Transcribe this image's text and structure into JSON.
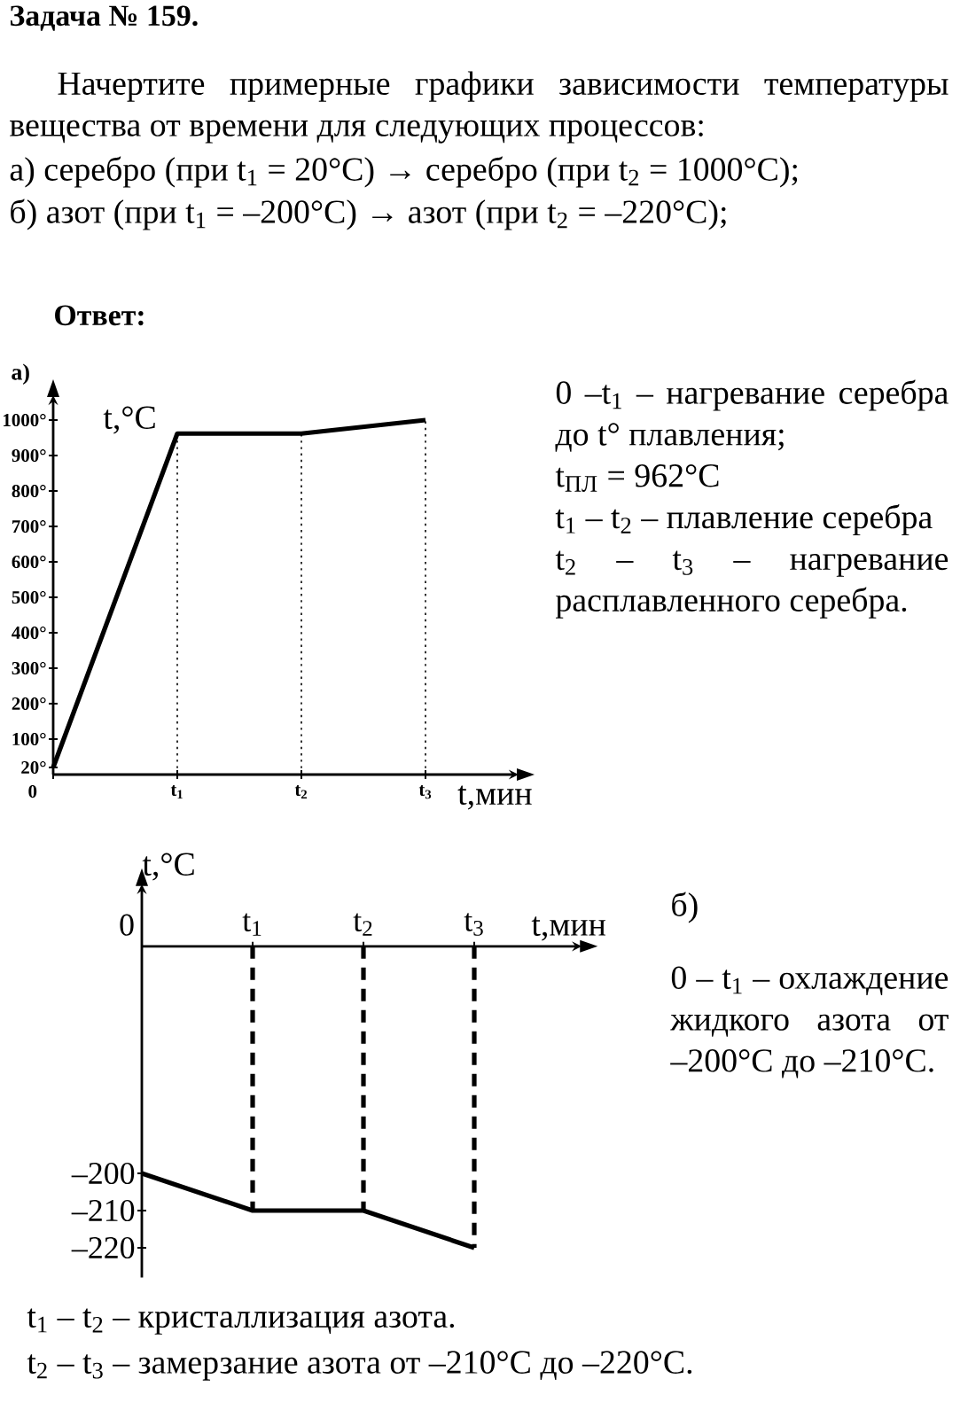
{
  "chart_data": [
    {
      "type": "line",
      "title": "Задача № 159.",
      "subtitle": "Начертите примерные графики зависимости температуры вещества от времени для следующих процессов:",
      "xlabel": "t,мин",
      "ylabel": "t,°C",
      "categories": [
        "0",
        "t$_{1}$",
        "t$_{2}$",
        "t$_{3}$"
      ],
      "values": [
        20,
        962,
        962,
        1000
      ],
      "color": "#000000",
      "line_style": "solid",
      "ylim": [
        0,
        1050
      ],
      "yticks": [
        {
          "value": 20,
          "label": "20°"
        },
        {
          "value": 100,
          "label": "100°"
        },
        {
          "value": 200,
          "label": "200°"
        },
        {
          "value": 300,
          "label": "300°"
        },
        {
          "value": 400,
          "label": "400°"
        },
        {
          "value": 500,
          "label": "500°"
        },
        {
          "value": 600,
          "label": "600°"
        },
        {
          "value": 700,
          "label": "700°"
        },
        {
          "value": 800,
          "label": "800°"
        },
        {
          "value": 900,
          "label": "900°"
        },
        {
          "value": 1000,
          "label": "1000°"
        }
      ],
      "ref_lines": [
        {
          "axis": "x",
          "value": "t$_{1}$",
          "line_style": "dotted",
          "color": "#000000"
        },
        {
          "axis": "x",
          "value": "t$_{2}$",
          "line_style": "dotted",
          "color": "#000000"
        },
        {
          "axis": "x",
          "value": "t$_{3}$",
          "line_style": "dotted",
          "color": "#000000"
        }
      ],
      "annotations": [
        "а) серебро (при t$_{1}$ = 20°C) → серебро (при t$_{2}$ = 1000°C);",
        "б) азот (при t$_{1}$ = –200°C) → азот (при t$_{2}$ = –220°C);",
        "Ответ:",
        "а)",
        "0 –t$_{1}$ – нагревание серебра до t° плавления;",
        "t$_{ПЛ}$ = 962°C",
        "t$_{1}$ – t$_{2}$ – плавление серебра",
        "t$_{2}$ – t$_{3}$ – нагревание расплавленного серебра."
      ]
    },
    {
      "type": "line",
      "xlabel": "t,мин",
      "ylabel": "t,°C",
      "categories": [
        "0",
        "t$_{1}$",
        "t$_{2}$",
        "t$_{3}$"
      ],
      "values": [
        -200,
        -210,
        -210,
        -220
      ],
      "color": "#000000",
      "line_style": "solid",
      "ylim": [
        -228,
        -139
      ],
      "yticks": [
        {
          "value": -220,
          "label": "–220"
        },
        {
          "value": -210,
          "label": "–210"
        },
        {
          "value": -200,
          "label": "–200"
        }
      ],
      "ref_lines": [
        {
          "axis": "x",
          "value": "t$_{1}$",
          "line_style": "dashed",
          "color": "#000000"
        },
        {
          "axis": "x",
          "value": "t$_{2}$",
          "line_style": "dashed",
          "color": "#000000"
        },
        {
          "axis": "x",
          "value": "t$_{3}$",
          "line_style": "dashed",
          "color": "#000000"
        }
      ],
      "annotations": [
        "б)",
        "0 – t$_{1}$ – охлаждение жидкого азота от –200°C до –210°C.",
        "t$_{1}$ – t$_{2}$ – кристаллизация азота.",
        "t$_{2}$ – t$_{3}$ – замерзание азота от –210°C до –220°C."
      ]
    }
  ]
}
